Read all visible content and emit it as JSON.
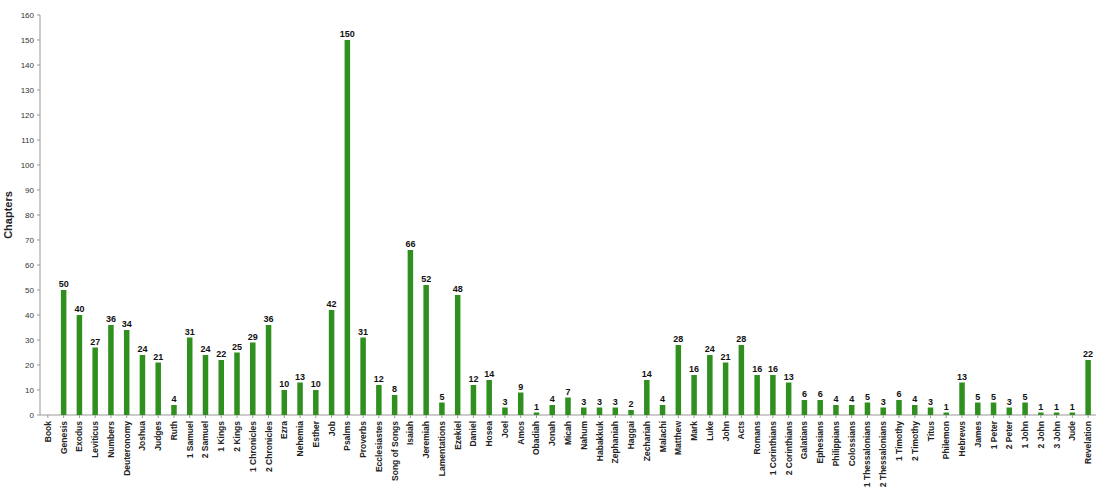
{
  "chart_data": {
    "type": "bar",
    "y_label": "Chapters",
    "categories": [
      "Book",
      "Genesis",
      "Exodus",
      "Leviticus",
      "Numbers",
      "Deuteronomy",
      "Joshua",
      "Judges",
      "Ruth",
      "1 Samuel",
      "2 Samuel",
      "1 Kings",
      "2 Kings",
      "1 Chronicles",
      "2 Chronicles",
      "Ezra",
      "Nehemia",
      "Esther",
      "Job",
      "Psalms",
      "Proverbs",
      "Ecclesiastes",
      "Song of Songs",
      "Isaiah",
      "Jeremiah",
      "Lamentations",
      "Ezekiel",
      "Daniel",
      "Hosea",
      "Joel",
      "Amos",
      "Obadiah",
      "Jonah",
      "Micah",
      "Nahum",
      "Habakkuk",
      "Zephaniah",
      "Haggai",
      "Zechariah",
      "Malachi",
      "Matthew",
      "Mark",
      "Luke",
      "John",
      "Acts",
      "Romans",
      "1 Corinthians",
      "2 Corinthians",
      "Galatians",
      "Ephesians",
      "Philippians",
      "Colossians",
      "1 Thessalonians",
      "2 Thessalonians",
      "1 Timothy",
      "2 Timothy",
      "Titus",
      "Philemon",
      "Hebrews",
      "James",
      "1 Peter",
      "2 Peter",
      "1 John",
      "2 John",
      "3 John",
      "Jude",
      "Revelation"
    ],
    "values": [
      null,
      50,
      40,
      27,
      36,
      34,
      24,
      21,
      4,
      31,
      24,
      22,
      25,
      29,
      36,
      10,
      13,
      10,
      42,
      150,
      31,
      12,
      8,
      66,
      52,
      5,
      48,
      12,
      14,
      3,
      9,
      1,
      4,
      7,
      3,
      3,
      3,
      2,
      14,
      4,
      28,
      16,
      24,
      21,
      28,
      16,
      16,
      13,
      6,
      6,
      4,
      4,
      5,
      3,
      6,
      4,
      3,
      1,
      13,
      5,
      5,
      3,
      5,
      1,
      1,
      1,
      22
    ],
    "color": "#2f8f1f",
    "ylim": [
      0,
      160
    ],
    "yticks": [
      0,
      10,
      20,
      30,
      40,
      50,
      60,
      70,
      80,
      90,
      100,
      110,
      120,
      130,
      140,
      150,
      160
    ],
    "grid": false,
    "data_labels": true
  }
}
